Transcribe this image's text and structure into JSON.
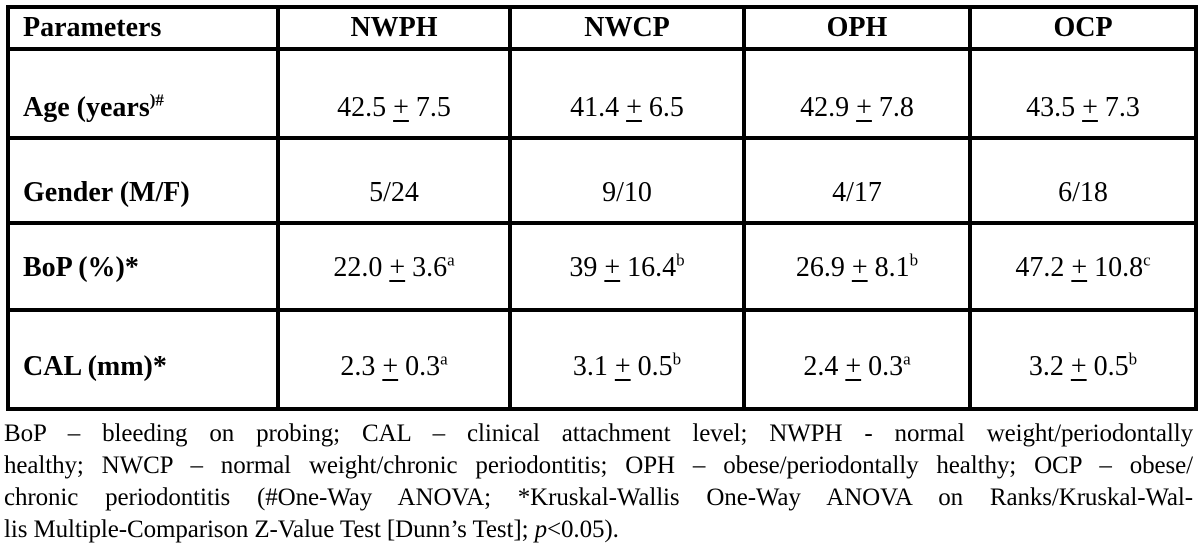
{
  "colors": {
    "text": "#000000",
    "border": "#000000",
    "background": "#ffffff"
  },
  "table": {
    "columns": [
      "Parameters",
      "NWPH",
      "NWCP",
      "OPH",
      "OCP"
    ],
    "rows": [
      {
        "label": "Age (years",
        "label_sup": ")#",
        "cells": [
          {
            "value": "42.5 ± 7.5",
            "sup": ""
          },
          {
            "value": "41.4 ± 6.5",
            "sup": ""
          },
          {
            "value": "42.9 ± 7.8",
            "sup": ""
          },
          {
            "value": "43.5 ± 7.3",
            "sup": ""
          }
        ]
      },
      {
        "label": "Gender (M/F)",
        "label_sup": "",
        "cells": [
          {
            "value": "5/24",
            "sup": ""
          },
          {
            "value": "9/10",
            "sup": ""
          },
          {
            "value": "4/17",
            "sup": ""
          },
          {
            "value": "6/18",
            "sup": ""
          }
        ]
      },
      {
        "label": "BoP (%)*",
        "label_sup": "",
        "cells": [
          {
            "value": "22.0 ± 3.6",
            "sup": "a"
          },
          {
            "value": "39 ± 16.4",
            "sup": "b"
          },
          {
            "value": "26.9 ± 8.1",
            "sup": "b"
          },
          {
            "value": "47.2 ± 10.8",
            "sup": "c"
          }
        ]
      },
      {
        "label": "CAL (mm)*",
        "label_sup": "",
        "cells": [
          {
            "value": "2.3 ± 0.3",
            "sup": "a"
          },
          {
            "value": "3.1 ± 0.5",
            "sup": "b"
          },
          {
            "value": "2.4 ± 0.3",
            "sup": "a"
          },
          {
            "value": "3.2 ± 0.5",
            "sup": "b"
          }
        ]
      }
    ]
  },
  "footnote": {
    "lines": [
      "BoP – bleeding on probing; CAL – clinical attachment level; NWPH - normal weight/periodontally",
      "healthy; NWCP – normal weight/chronic periodontitis; OPH – obese/periodontally healthy; OCP – obese/",
      "chronic periodontitis (#One-Way ANOVA; *Kruskal-Wallis One-Way ANOVA on Ranks/Kruskal-Wal-"
    ],
    "last_line": {
      "pre": "lis Multiple-Comparison Z-Value Test [Dunn’s Test]; ",
      "italic": "p",
      "post": "<0.05)."
    }
  }
}
